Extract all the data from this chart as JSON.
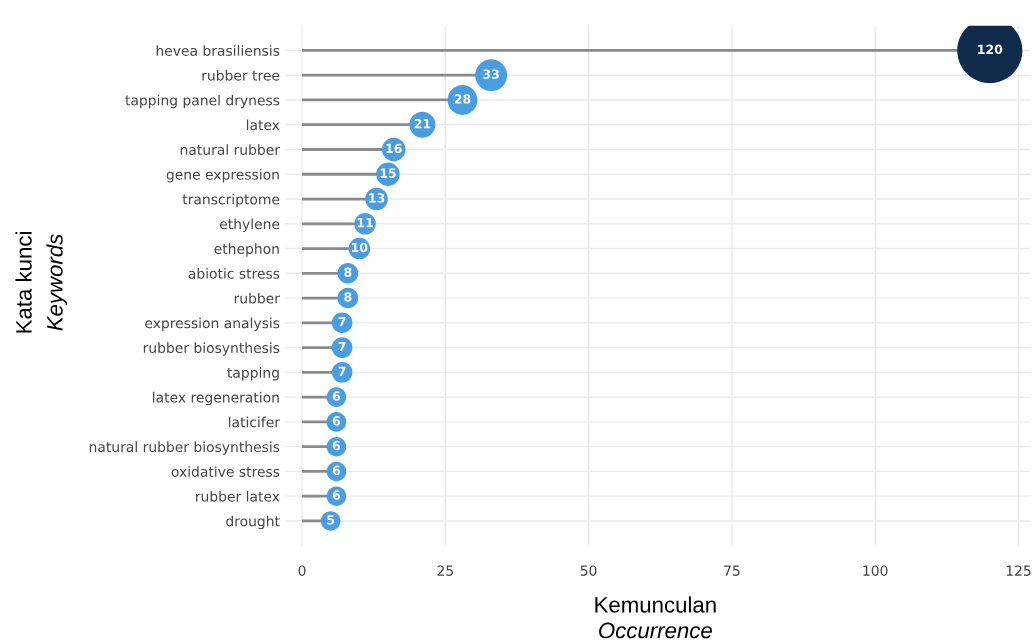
{
  "chart_data": {
    "type": "lollipop",
    "orientation": "horizontal",
    "categories": [
      "hevea brasiliensis",
      "rubber tree",
      "tapping panel dryness",
      "latex",
      "natural rubber",
      "gene expression",
      "transcriptome",
      "ethylene",
      "ethephon",
      "abiotic stress",
      "rubber",
      "expression analysis",
      "rubber biosynthesis",
      "tapping",
      "latex regeneration",
      "laticifer",
      "natural rubber biosynthesis",
      "oxidative stress",
      "rubber latex",
      "drought"
    ],
    "values": [
      120,
      33,
      28,
      21,
      16,
      15,
      13,
      11,
      10,
      8,
      8,
      7,
      7,
      7,
      6,
      6,
      6,
      6,
      6,
      5
    ],
    "colors": [
      "#0f2a4a",
      "#4a9de0",
      "#4a9de0",
      "#4a9de0",
      "#4a9de0",
      "#4a9de0",
      "#4a9de0",
      "#4a9de0",
      "#4a9de0",
      "#4a9de0",
      "#4a9de0",
      "#4a9de0",
      "#4a9de0",
      "#4a9de0",
      "#4a9de0",
      "#4a9de0",
      "#4a9de0",
      "#4a9de0",
      "#4a9de0",
      "#4a9de0"
    ],
    "sizes": [
      1,
      0.24,
      0.21,
      0.16,
      0.13,
      0.13,
      0.12,
      0.11,
      0.11,
      0.1,
      0.1,
      0.1,
      0.1,
      0.1,
      0.09,
      0.09,
      0.09,
      0.09,
      0.09,
      0.09
    ],
    "data_labels": true,
    "xlim": [
      -3,
      127
    ],
    "xticks": [
      0,
      25,
      50,
      75,
      100,
      125
    ],
    "xlabel": "Kemunculan\nOccurrence",
    "ylabel": "Kata kunci\nKeywords",
    "grid": true
  }
}
